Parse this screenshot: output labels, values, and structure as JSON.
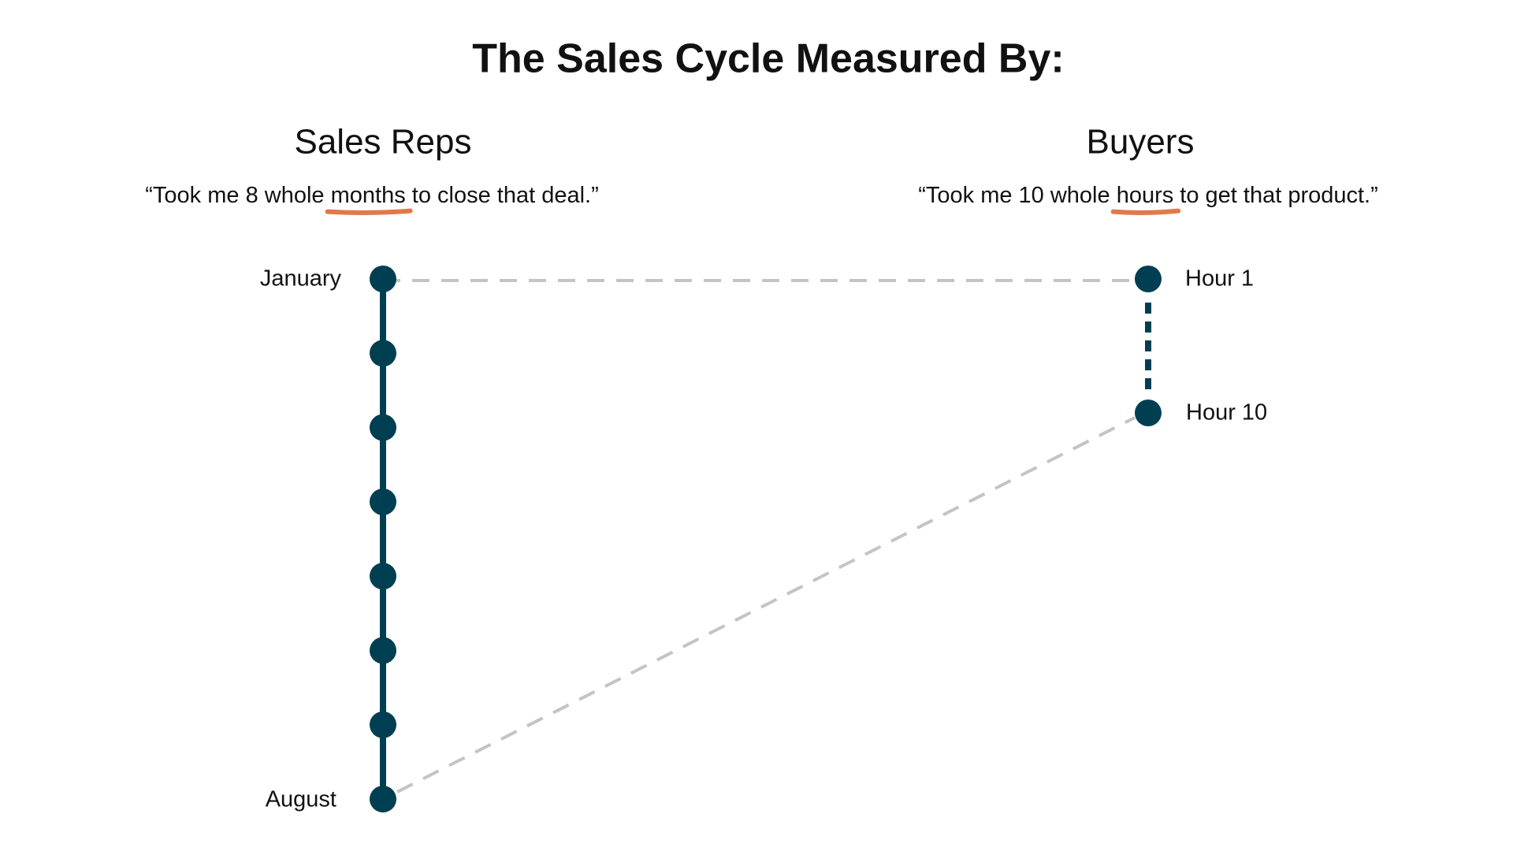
{
  "header": {
    "title": "The Sales Cycle Measured By:"
  },
  "columns": [
    {
      "heading": "Sales Reps",
      "quote": {
        "before": "“Took me 8 whole ",
        "highlight": "months",
        "after": " to close that deal.”"
      },
      "timeline": {
        "start": "January",
        "end": "August"
      }
    },
    {
      "heading": "Buyers",
      "quote": {
        "before": "“Took me 10 whole ",
        "highlight": "hours",
        "after": " to get that product.”"
      },
      "timeline": {
        "start": "Hour 1",
        "end": "Hour 10"
      }
    }
  ]
}
